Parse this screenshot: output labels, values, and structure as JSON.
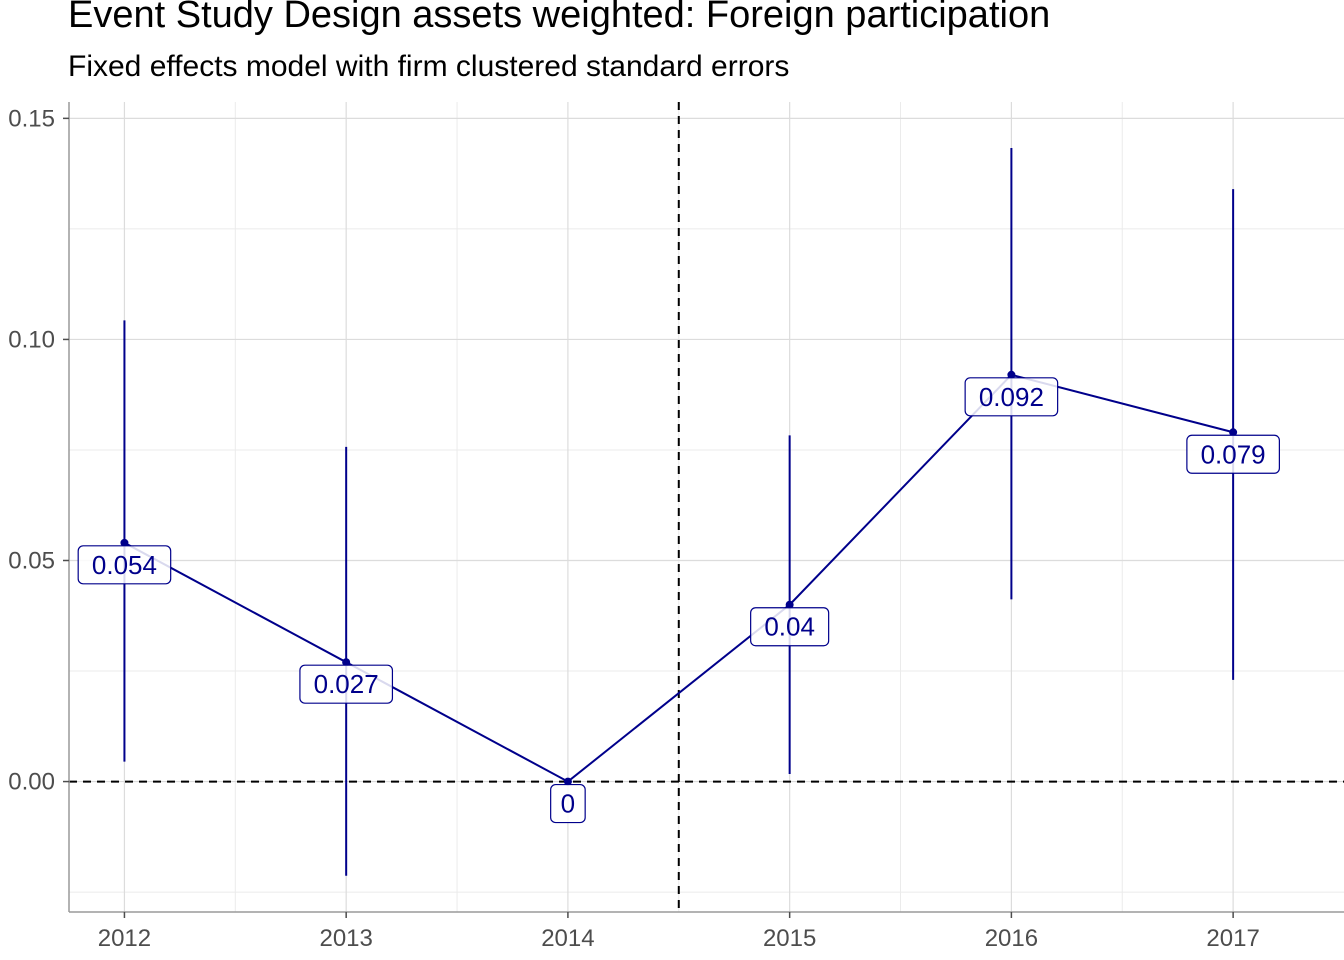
{
  "chart_data": {
    "type": "line",
    "title": "Event Study Design assets weighted: Foreign participation",
    "subtitle": "Fixed effects model with firm clustered standard errors",
    "xlabel": "",
    "ylabel": "",
    "categories": [
      "2012",
      "2013",
      "2014",
      "2015",
      "2016",
      "2017"
    ],
    "series": [
      {
        "values": [
          0.054,
          0.027,
          0.0,
          0.04,
          0.092,
          0.079
        ],
        "labels": [
          "0.054",
          "0.027",
          "0",
          "0.04",
          "0.092",
          "0.079"
        ],
        "ci_lower": [
          0.0045,
          -0.0213,
          0.0,
          0.0017,
          0.0412,
          0.023
        ],
        "ci_upper": [
          0.1043,
          0.0757,
          0.0,
          0.0783,
          0.1433,
          0.134
        ],
        "color": "#00008B"
      }
    ],
    "ylim": [
      -0.0295,
      0.1537
    ],
    "yticks": [
      0.0,
      0.05,
      0.1,
      0.15
    ],
    "ytick_labels": [
      "0.00",
      "0.05",
      "0.10",
      "0.15"
    ],
    "reference_lines": {
      "horizontal_at": 0.0,
      "vertical_between": [
        "2014",
        "2015"
      ],
      "style": "dashed"
    },
    "grid": true
  }
}
